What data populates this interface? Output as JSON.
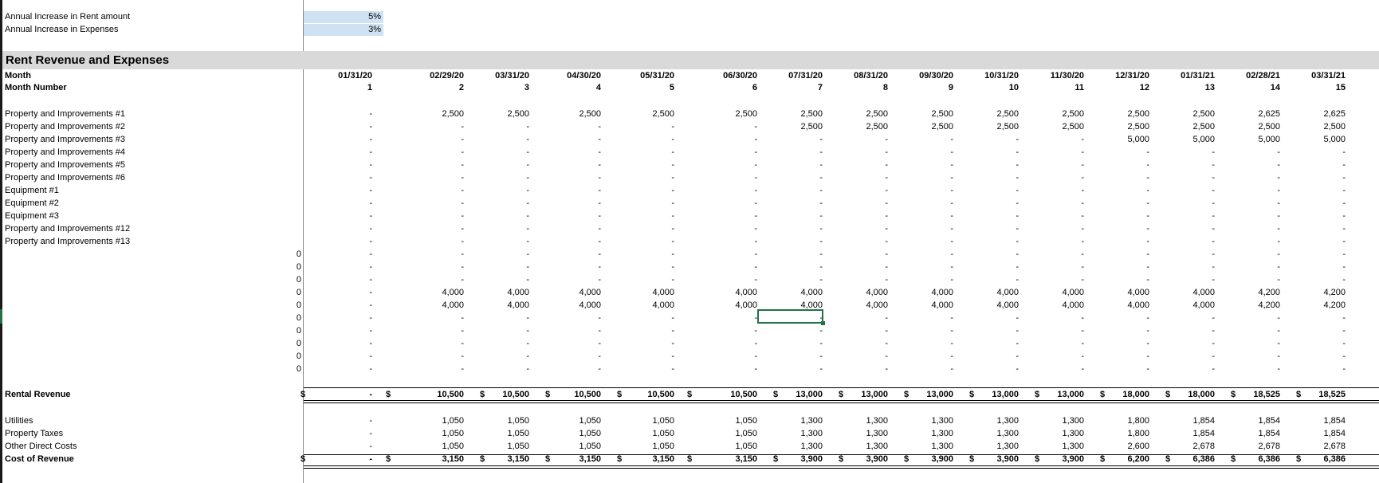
{
  "assumptions": [
    {
      "label": "Annual Increase in Rent amount",
      "value": "5%"
    },
    {
      "label": "Annual Increase in Expenses",
      "value": "3%"
    }
  ],
  "section_title": "Rent Revenue and Expenses",
  "header_rows": [
    {
      "label": "Month",
      "values": [
        "01/31/20",
        "02/29/20",
        "03/31/20",
        "04/30/20",
        "05/31/20",
        "06/30/20",
        "07/31/20",
        "08/31/20",
        "09/30/20",
        "10/31/20",
        "11/30/20",
        "12/31/20",
        "01/31/21",
        "02/28/21",
        "03/31/21"
      ]
    },
    {
      "label": "Month Number",
      "values": [
        "1",
        "2",
        "3",
        "4",
        "5",
        "6",
        "7",
        "8",
        "9",
        "10",
        "11",
        "12",
        "13",
        "14",
        "15"
      ]
    }
  ],
  "overflow_text": "0",
  "revenue_rows": [
    {
      "label": "Property and Improvements #1",
      "values": [
        "-",
        "2,500",
        "2,500",
        "2,500",
        "2,500",
        "2,500",
        "2,500",
        "2,500",
        "2,500",
        "2,500",
        "2,500",
        "2,500",
        "2,500",
        "2,625",
        "2,625"
      ]
    },
    {
      "label": "Property and Improvements #2",
      "values": [
        "-",
        "-",
        "-",
        "-",
        "-",
        "-",
        "2,500",
        "2,500",
        "2,500",
        "2,500",
        "2,500",
        "2,500",
        "2,500",
        "2,500",
        "2,500"
      ]
    },
    {
      "label": "Property and Improvements #3",
      "values": [
        "-",
        "-",
        "-",
        "-",
        "-",
        "-",
        "-",
        "-",
        "-",
        "-",
        "-",
        "5,000",
        "5,000",
        "5,000",
        "5,000"
      ]
    },
    {
      "label": "Property and Improvements #4",
      "values": [
        "-",
        "-",
        "-",
        "-",
        "-",
        "-",
        "-",
        "-",
        "-",
        "-",
        "-",
        "-",
        "-",
        "-",
        "-"
      ]
    },
    {
      "label": "Property and Improvements #5",
      "values": [
        "-",
        "-",
        "-",
        "-",
        "-",
        "-",
        "-",
        "-",
        "-",
        "-",
        "-",
        "-",
        "-",
        "-",
        "-"
      ]
    },
    {
      "label": "Property and Improvements #6",
      "values": [
        "-",
        "-",
        "-",
        "-",
        "-",
        "-",
        "-",
        "-",
        "-",
        "-",
        "-",
        "-",
        "-",
        "-",
        "-"
      ]
    },
    {
      "label": "Equipment #1",
      "values": [
        "-",
        "-",
        "-",
        "-",
        "-",
        "-",
        "-",
        "-",
        "-",
        "-",
        "-",
        "-",
        "-",
        "-",
        "-"
      ]
    },
    {
      "label": "Equipment #2",
      "values": [
        "-",
        "-",
        "-",
        "-",
        "-",
        "-",
        "-",
        "-",
        "-",
        "-",
        "-",
        "-",
        "-",
        "-",
        "-"
      ]
    },
    {
      "label": "Equipment #3",
      "values": [
        "-",
        "-",
        "-",
        "-",
        "-",
        "-",
        "-",
        "-",
        "-",
        "-",
        "-",
        "-",
        "-",
        "-",
        "-"
      ]
    },
    {
      "label": "Property and Improvements #12",
      "values": [
        "-",
        "-",
        "-",
        "-",
        "-",
        "-",
        "-",
        "-",
        "-",
        "-",
        "-",
        "-",
        "-",
        "-",
        "-"
      ]
    },
    {
      "label": "Property and Improvements #13",
      "values": [
        "-",
        "-",
        "-",
        "-",
        "-",
        "-",
        "-",
        "-",
        "-",
        "-",
        "-",
        "-",
        "-",
        "-",
        "-"
      ]
    },
    {
      "label": "0",
      "values": [
        "-",
        "-",
        "-",
        "-",
        "-",
        "-",
        "-",
        "-",
        "-",
        "-",
        "-",
        "-",
        "-",
        "-",
        "-"
      ]
    },
    {
      "label": "0",
      "values": [
        "-",
        "-",
        "-",
        "-",
        "-",
        "-",
        "-",
        "-",
        "-",
        "-",
        "-",
        "-",
        "-",
        "-",
        "-"
      ]
    },
    {
      "label": "0",
      "values": [
        "-",
        "-",
        "-",
        "-",
        "-",
        "-",
        "-",
        "-",
        "-",
        "-",
        "-",
        "-",
        "-",
        "-",
        "-"
      ]
    },
    {
      "label": "0",
      "values": [
        "-",
        "4,000",
        "4,000",
        "4,000",
        "4,000",
        "4,000",
        "4,000",
        "4,000",
        "4,000",
        "4,000",
        "4,000",
        "4,000",
        "4,000",
        "4,200",
        "4,200"
      ]
    },
    {
      "label": "0",
      "values": [
        "-",
        "4,000",
        "4,000",
        "4,000",
        "4,000",
        "4,000",
        "4,000",
        "4,000",
        "4,000",
        "4,000",
        "4,000",
        "4,000",
        "4,000",
        "4,200",
        "4,200"
      ]
    },
    {
      "label": "0",
      "values": [
        "-",
        "-",
        "-",
        "-",
        "-",
        "-",
        "-",
        "-",
        "-",
        "-",
        "-",
        "-",
        "-",
        "-",
        "-"
      ]
    },
    {
      "label": "0",
      "values": [
        "-",
        "-",
        "-",
        "-",
        "-",
        "-",
        "-",
        "-",
        "-",
        "-",
        "-",
        "-",
        "-",
        "-",
        "-"
      ]
    },
    {
      "label": "0",
      "values": [
        "-",
        "-",
        "-",
        "-",
        "-",
        "-",
        "-",
        "-",
        "-",
        "-",
        "-",
        "-",
        "-",
        "-",
        "-"
      ]
    },
    {
      "label": "0",
      "values": [
        "-",
        "-",
        "-",
        "-",
        "-",
        "-",
        "-",
        "-",
        "-",
        "-",
        "-",
        "-",
        "-",
        "-",
        "-"
      ]
    },
    {
      "label": "0",
      "values": [
        "-",
        "-",
        "-",
        "-",
        "-",
        "-",
        "-",
        "-",
        "-",
        "-",
        "-",
        "-",
        "-",
        "-",
        "-"
      ]
    }
  ],
  "rental_revenue": {
    "label": "Rental Revenue",
    "currency": "$",
    "values": [
      "-",
      "10,500",
      "10,500",
      "10,500",
      "10,500",
      "10,500",
      "13,000",
      "13,000",
      "13,000",
      "13,000",
      "13,000",
      "18,000",
      "18,000",
      "18,525",
      "18,525"
    ]
  },
  "expense_rows": [
    {
      "label": "Utilities",
      "values": [
        "-",
        "1,050",
        "1,050",
        "1,050",
        "1,050",
        "1,050",
        "1,300",
        "1,300",
        "1,300",
        "1,300",
        "1,300",
        "1,800",
        "1,854",
        "1,854",
        "1,854"
      ]
    },
    {
      "label": "Property Taxes",
      "values": [
        "-",
        "1,050",
        "1,050",
        "1,050",
        "1,050",
        "1,050",
        "1,300",
        "1,300",
        "1,300",
        "1,300",
        "1,300",
        "1,800",
        "1,854",
        "1,854",
        "1,854"
      ]
    },
    {
      "label": "Other Direct Costs",
      "values": [
        "-",
        "1,050",
        "1,050",
        "1,050",
        "1,050",
        "1,050",
        "1,300",
        "1,300",
        "1,300",
        "1,300",
        "1,300",
        "2,600",
        "2,678",
        "2,678",
        "2,678"
      ]
    }
  ],
  "cost_of_revenue": {
    "label": "Cost of Revenue",
    "currency": "$",
    "values": [
      "-",
      "3,150",
      "3,150",
      "3,150",
      "3,150",
      "3,150",
      "3,900",
      "3,900",
      "3,900",
      "3,900",
      "3,900",
      "6,200",
      "6,386",
      "6,386",
      "6,386"
    ]
  }
}
